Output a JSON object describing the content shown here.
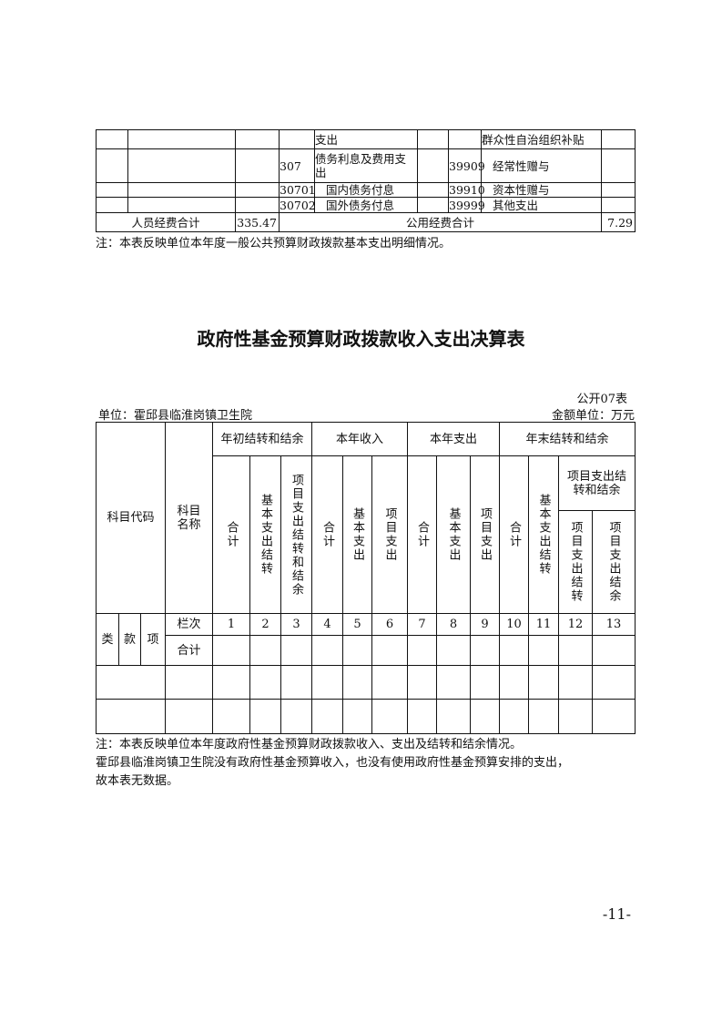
{
  "top_table": {
    "rows": [
      {
        "code_a": "",
        "name_a": "支出",
        "code_b": "",
        "name_b": "群众性自治组织补贴"
      },
      {
        "code_a": "307",
        "name_a": "债务利息及费用支出",
        "code_b": "39909",
        "name_b": "经常性赠与"
      },
      {
        "code_a": "30701",
        "name_a": "国内债务付息",
        "code_b": "39910",
        "name_b": "资本性赠与"
      },
      {
        "code_a": "30702",
        "name_a": "国外债务付息",
        "code_b": "39999",
        "name_b": "其他支出"
      }
    ],
    "personnel_total_label": "人员经费合计",
    "personnel_total_value": "335.47",
    "public_total_label": "公用经费合计",
    "public_total_value": "7.29"
  },
  "note1": "注：本表反映单位本年度一般公共预算财政拨款基本支出明细情况。",
  "title": "政府性基金预算财政拨款收入支出决算表",
  "form_no": "公开07表",
  "unit": "单位：霍邱县临淮岗镇卫生院",
  "amount_unit": "金额单位：万元",
  "table": {
    "code": "科目代码",
    "name": "科目名称",
    "g1": "年初结转和结余",
    "g2": "本年收入",
    "g3": "本年支出",
    "g4": "年末结转和结余",
    "total": "合计",
    "basic_carry": "基本支出结转",
    "proj_carry_bal": "项目支出结转和结余",
    "basic_exp": "基本支出",
    "proj_exp": "项目支出",
    "proj_sub": "项目支出结转和结余",
    "proj_carry": "项目支出结转",
    "proj_bal": "项目支出结余",
    "lei": "类",
    "kuan": "款",
    "xiang": "项",
    "lanci": "栏次",
    "nums": [
      "1",
      "2",
      "3",
      "4",
      "5",
      "6",
      "7",
      "8",
      "9",
      "10",
      "11",
      "12",
      "13"
    ]
  },
  "note2": "注：本表反映单位本年度政府性基金预算财政拨款收入、支出及结转和结余情况。",
  "note3": "霍邱县临淮岗镇卫生院没有政府性基金预算收入，也没有使用政府性基金预算安排的支出，",
  "note4": "故本表无数据。",
  "page_number": "-11-"
}
